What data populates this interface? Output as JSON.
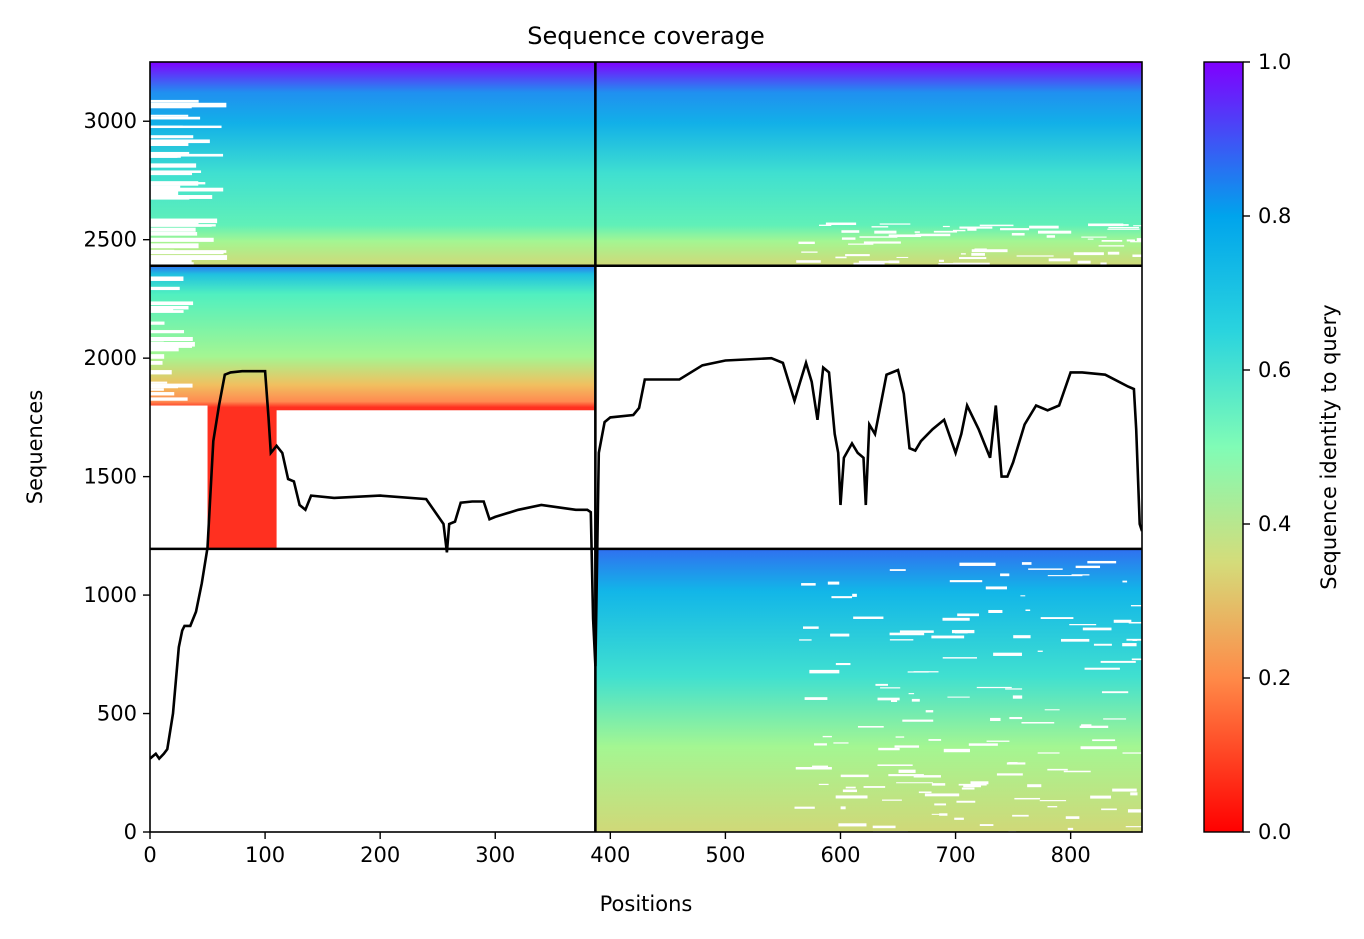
{
  "chart_data": {
    "type": "heatmap",
    "title": "Sequence coverage",
    "xlabel": "Positions",
    "ylabel": "Sequences",
    "xlim": [
      0,
      862
    ],
    "ylim": [
      0,
      3250
    ],
    "x_ticks": [
      0,
      100,
      200,
      300,
      400,
      500,
      600,
      700,
      800
    ],
    "x_tick_labels": [
      "0",
      "100",
      "200",
      "300",
      "400",
      "500",
      "600",
      "700",
      "800"
    ],
    "y_ticks": [
      0,
      500,
      1000,
      1500,
      2000,
      2500,
      3000
    ],
    "y_tick_labels": [
      "0",
      "500",
      "1000",
      "1500",
      "2000",
      "2500",
      "3000"
    ],
    "colorbar": {
      "label": "Sequence identity to query",
      "colormap": "rainbow_r",
      "range": [
        0,
        1
      ],
      "ticks": [
        0.0,
        0.2,
        0.4,
        0.6,
        0.8,
        1.0
      ],
      "tick_labels": [
        "0.0",
        "0.2",
        "0.4",
        "0.6",
        "0.8",
        "1.0"
      ]
    },
    "dividers": {
      "vertical_at": 387,
      "horizontal_at": [
        1195,
        2390
      ]
    },
    "blocks": [
      {
        "name": "lower-right",
        "x": [
          387,
          862
        ],
        "y": [
          0,
          1195
        ],
        "identity_bottom": 0.35,
        "identity_top": 0.85
      },
      {
        "name": "middle-left",
        "x": [
          0,
          387
        ],
        "y": [
          1195,
          2390
        ],
        "identity_bottom": 0.0,
        "identity_top": 0.85
      },
      {
        "name": "upper-left",
        "x": [
          0,
          387
        ],
        "y": [
          2390,
          3250
        ],
        "identity_bottom": 0.35,
        "identity_top": 1.0
      },
      {
        "name": "upper-right",
        "x": [
          387,
          862
        ],
        "y": [
          2390,
          3250
        ],
        "identity_bottom": 0.35,
        "identity_top": 1.0
      }
    ],
    "coverage_line": {
      "x": [
        0,
        5,
        8,
        12,
        15,
        20,
        25,
        28,
        30,
        35,
        40,
        45,
        50,
        55,
        60,
        65,
        70,
        80,
        90,
        100,
        103,
        105,
        110,
        115,
        120,
        125,
        130,
        135,
        140,
        160,
        200,
        240,
        255,
        258,
        260,
        265,
        270,
        280,
        290,
        295,
        300,
        320,
        340,
        370,
        380,
        383,
        385,
        387,
        390,
        395,
        400,
        420,
        425,
        430,
        460,
        480,
        500,
        540,
        550,
        555,
        560,
        565,
        570,
        575,
        580,
        585,
        590,
        595,
        598,
        600,
        603,
        610,
        615,
        620,
        622,
        625,
        630,
        640,
        650,
        655,
        660,
        665,
        670,
        680,
        690,
        700,
        705,
        710,
        720,
        725,
        730,
        735,
        740,
        745,
        750,
        760,
        770,
        780,
        790,
        800,
        810,
        830,
        850,
        855,
        857,
        860,
        862
      ],
      "y": [
        310,
        330,
        310,
        330,
        350,
        500,
        780,
        850,
        870,
        870,
        930,
        1050,
        1200,
        1650,
        1800,
        1930,
        1940,
        1945,
        1945,
        1945,
        1750,
        1600,
        1630,
        1600,
        1490,
        1480,
        1380,
        1360,
        1420,
        1410,
        1420,
        1405,
        1300,
        1180,
        1300,
        1310,
        1390,
        1395,
        1395,
        1320,
        1330,
        1360,
        1380,
        1360,
        1360,
        1350,
        900,
        700,
        1600,
        1730,
        1750,
        1760,
        1790,
        1910,
        1910,
        1970,
        1990,
        2000,
        1980,
        1900,
        1820,
        1900,
        1980,
        1900,
        1740,
        1960,
        1940,
        1680,
        1600,
        1380,
        1580,
        1640,
        1600,
        1580,
        1380,
        1720,
        1680,
        1930,
        1950,
        1850,
        1620,
        1610,
        1650,
        1700,
        1740,
        1600,
        1680,
        1800,
        1700,
        1640,
        1580,
        1800,
        1500,
        1500,
        1560,
        1720,
        1800,
        1780,
        1800,
        1940,
        1940,
        1930,
        1880,
        1870,
        1700,
        1300,
        1270
      ]
    }
  }
}
